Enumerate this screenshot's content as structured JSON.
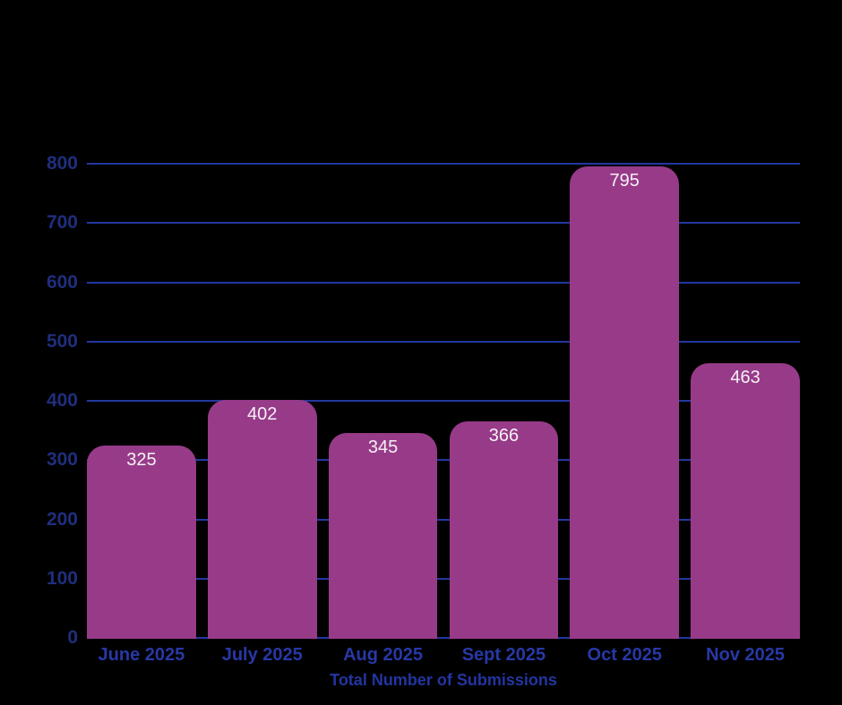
{
  "chart_data": {
    "type": "bar",
    "categories": [
      "June 2025",
      "July 2025",
      "Aug 2025",
      "Sept 2025",
      "Oct 2025",
      "Nov 2025"
    ],
    "values": [
      325,
      402,
      345,
      366,
      795,
      463
    ],
    "bar_value_labels": [
      "325",
      "402",
      "345",
      "366",
      "795",
      "463"
    ],
    "title": "",
    "xlabel": "Total Number of Submissions",
    "ylabel": "",
    "ylim": [
      0,
      800
    ],
    "yticks": [
      0,
      100,
      200,
      300,
      400,
      500,
      600,
      700,
      800
    ],
    "grid": true,
    "legend": "none",
    "colors": {
      "background": "#000000",
      "bar": "#973b89",
      "bar_label": "#f6f0f5",
      "gridline": "#2338a0",
      "y_tick_label": "#1f2e7d",
      "x_tick_label": "#2838a5",
      "axis_title": "#2335a0"
    }
  }
}
